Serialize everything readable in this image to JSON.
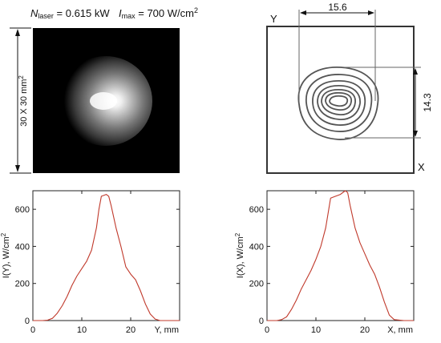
{
  "header": {
    "n_laser_symbol": "N",
    "n_laser_sub": "laser",
    "n_laser_value": " = 0.615 kW",
    "i_max_symbol": "I",
    "i_max_sub": "max",
    "i_max_value": " = 700 W/cm",
    "i_max_sup": "2"
  },
  "beam_image": {
    "side_label": "30 X 30 mm",
    "side_label_sup": "2"
  },
  "contour_plot": {
    "y_axis_label": "Y",
    "x_axis_label": "X",
    "width_dimension": "15.6",
    "height_dimension": "14.3"
  },
  "chart_data": [
    {
      "type": "line",
      "title": "",
      "xlabel": "Y, mm",
      "ylabel": "I(Y), W/cm",
      "ylabel_sup": "2",
      "xlim": [
        0,
        30
      ],
      "ylim": [
        0,
        700
      ],
      "xticks": [
        "0",
        "10",
        "20"
      ],
      "yticks": [
        "0",
        "200",
        "400",
        "600"
      ],
      "grid": false,
      "line_color": "#c0392b",
      "x": [
        0,
        2,
        3,
        4,
        5,
        6,
        7,
        8,
        9,
        10,
        11,
        12,
        13,
        13.5,
        14,
        15,
        15.5,
        16,
        17,
        18,
        19,
        20,
        21,
        22,
        23,
        24,
        25,
        26,
        28,
        30
      ],
      "y": [
        0,
        0,
        2,
        12,
        40,
        80,
        130,
        190,
        240,
        280,
        320,
        380,
        500,
        600,
        670,
        680,
        670,
        620,
        500,
        400,
        290,
        250,
        220,
        160,
        90,
        35,
        8,
        0,
        0,
        0
      ]
    },
    {
      "type": "line",
      "title": "",
      "xlabel": "X, mm",
      "ylabel": "I(X), W/cm",
      "ylabel_sup": "2",
      "xlim": [
        0,
        30
      ],
      "ylim": [
        0,
        700
      ],
      "xticks": [
        "0",
        "10",
        "20"
      ],
      "yticks": [
        "0",
        "200",
        "400",
        "600"
      ],
      "grid": false,
      "line_color": "#c0392b",
      "x": [
        0,
        2,
        3,
        4,
        5,
        6,
        7,
        8,
        9,
        10,
        11,
        12,
        13,
        14,
        15,
        16,
        16.5,
        17,
        18,
        19,
        20,
        21,
        22,
        23,
        24,
        25,
        26,
        28,
        30
      ],
      "y": [
        0,
        0,
        5,
        20,
        60,
        110,
        170,
        220,
        270,
        330,
        400,
        500,
        660,
        670,
        680,
        700,
        690,
        620,
        500,
        420,
        360,
        300,
        250,
        180,
        100,
        30,
        5,
        0,
        0
      ]
    }
  ]
}
